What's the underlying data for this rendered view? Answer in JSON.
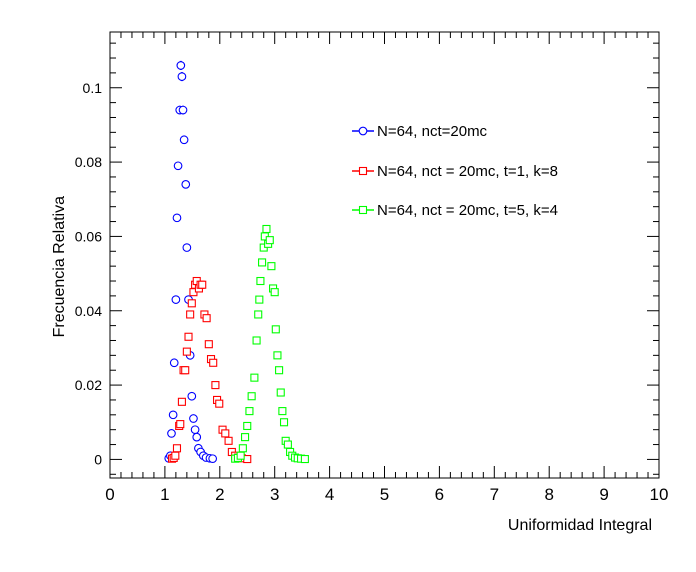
{
  "chart_data": {
    "type": "scatter",
    "title": "",
    "xlabel": "Uniformidad Integral",
    "ylabel": "Frecuencia Relativa",
    "xlim": [
      0,
      10
    ],
    "ylim": [
      -0.005,
      0.115
    ],
    "x_ticks": [
      "0",
      "1",
      "2",
      "3",
      "4",
      "5",
      "6",
      "7",
      "8",
      "9",
      "10"
    ],
    "y_ticks": [
      "0",
      "0.02",
      "0.04",
      "0.06",
      "0.08",
      "0.1"
    ],
    "grid": false,
    "legend_position": "top-right",
    "series": [
      {
        "name": "N=64, nct=20mc",
        "color": "#0000ff",
        "marker": "circle",
        "points": [
          [
            1.07,
            0.0003
          ],
          [
            1.1,
            0.001
          ],
          [
            1.12,
            0.007
          ],
          [
            1.15,
            0.012
          ],
          [
            1.17,
            0.026
          ],
          [
            1.2,
            0.043
          ],
          [
            1.22,
            0.065
          ],
          [
            1.24,
            0.079
          ],
          [
            1.27,
            0.094
          ],
          [
            1.29,
            0.106
          ],
          [
            1.31,
            0.103
          ],
          [
            1.33,
            0.094
          ],
          [
            1.35,
            0.086
          ],
          [
            1.38,
            0.074
          ],
          [
            1.4,
            0.057
          ],
          [
            1.43,
            0.043
          ],
          [
            1.46,
            0.028
          ],
          [
            1.49,
            0.017
          ],
          [
            1.52,
            0.011
          ],
          [
            1.55,
            0.008
          ],
          [
            1.58,
            0.006
          ],
          [
            1.61,
            0.003
          ],
          [
            1.65,
            0.002
          ],
          [
            1.7,
            0.001
          ],
          [
            1.75,
            0.0005
          ],
          [
            1.82,
            0.0003
          ],
          [
            1.87,
            0.0002
          ]
        ]
      },
      {
        "name": "N=64, nct = 20mc, t=1, k=8",
        "color": "#ff0000",
        "marker": "square",
        "points": [
          [
            1.13,
            0.0002
          ],
          [
            1.16,
            0.0004
          ],
          [
            1.19,
            0.001
          ],
          [
            1.22,
            0.003
          ],
          [
            1.26,
            0.009
          ],
          [
            1.28,
            0.0095
          ],
          [
            1.31,
            0.0155
          ],
          [
            1.34,
            0.024
          ],
          [
            1.37,
            0.024
          ],
          [
            1.4,
            0.029
          ],
          [
            1.43,
            0.033
          ],
          [
            1.46,
            0.039
          ],
          [
            1.49,
            0.042
          ],
          [
            1.52,
            0.045
          ],
          [
            1.55,
            0.047
          ],
          [
            1.58,
            0.048
          ],
          [
            1.62,
            0.046
          ],
          [
            1.65,
            0.047
          ],
          [
            1.68,
            0.047
          ],
          [
            1.72,
            0.039
          ],
          [
            1.76,
            0.038
          ],
          [
            1.8,
            0.031
          ],
          [
            1.84,
            0.027
          ],
          [
            1.88,
            0.026
          ],
          [
            1.92,
            0.02
          ],
          [
            1.95,
            0.016
          ],
          [
            1.99,
            0.015
          ],
          [
            2.05,
            0.008
          ],
          [
            2.1,
            0.007
          ],
          [
            2.16,
            0.005
          ],
          [
            2.22,
            0.002
          ],
          [
            2.28,
            0.001
          ],
          [
            2.33,
            0.0005
          ],
          [
            2.4,
            0.0003
          ],
          [
            2.5,
            0.0001
          ]
        ]
      },
      {
        "name": "N=64, nct = 20mc, t=5, k=4",
        "color": "#00ff00",
        "marker": "square",
        "points": [
          [
            2.28,
            0.0002
          ],
          [
            2.33,
            0.0004
          ],
          [
            2.38,
            0.001
          ],
          [
            2.42,
            0.003
          ],
          [
            2.46,
            0.006
          ],
          [
            2.5,
            0.009
          ],
          [
            2.54,
            0.013
          ],
          [
            2.58,
            0.017
          ],
          [
            2.63,
            0.022
          ],
          [
            2.67,
            0.032
          ],
          [
            2.7,
            0.039
          ],
          [
            2.72,
            0.043
          ],
          [
            2.74,
            0.048
          ],
          [
            2.77,
            0.053
          ],
          [
            2.8,
            0.057
          ],
          [
            2.82,
            0.06
          ],
          [
            2.85,
            0.062
          ],
          [
            2.88,
            0.058
          ],
          [
            2.91,
            0.059
          ],
          [
            2.94,
            0.052
          ],
          [
            2.97,
            0.046
          ],
          [
            3.0,
            0.045
          ],
          [
            3.02,
            0.035
          ],
          [
            3.05,
            0.028
          ],
          [
            3.08,
            0.024
          ],
          [
            3.11,
            0.018
          ],
          [
            3.14,
            0.013
          ],
          [
            3.17,
            0.01
          ],
          [
            3.2,
            0.005
          ],
          [
            3.24,
            0.004
          ],
          [
            3.28,
            0.002
          ],
          [
            3.32,
            0.001
          ],
          [
            3.37,
            0.0005
          ],
          [
            3.42,
            0.0003
          ],
          [
            3.48,
            0.0002
          ],
          [
            3.55,
            0.0001
          ]
        ]
      }
    ]
  }
}
